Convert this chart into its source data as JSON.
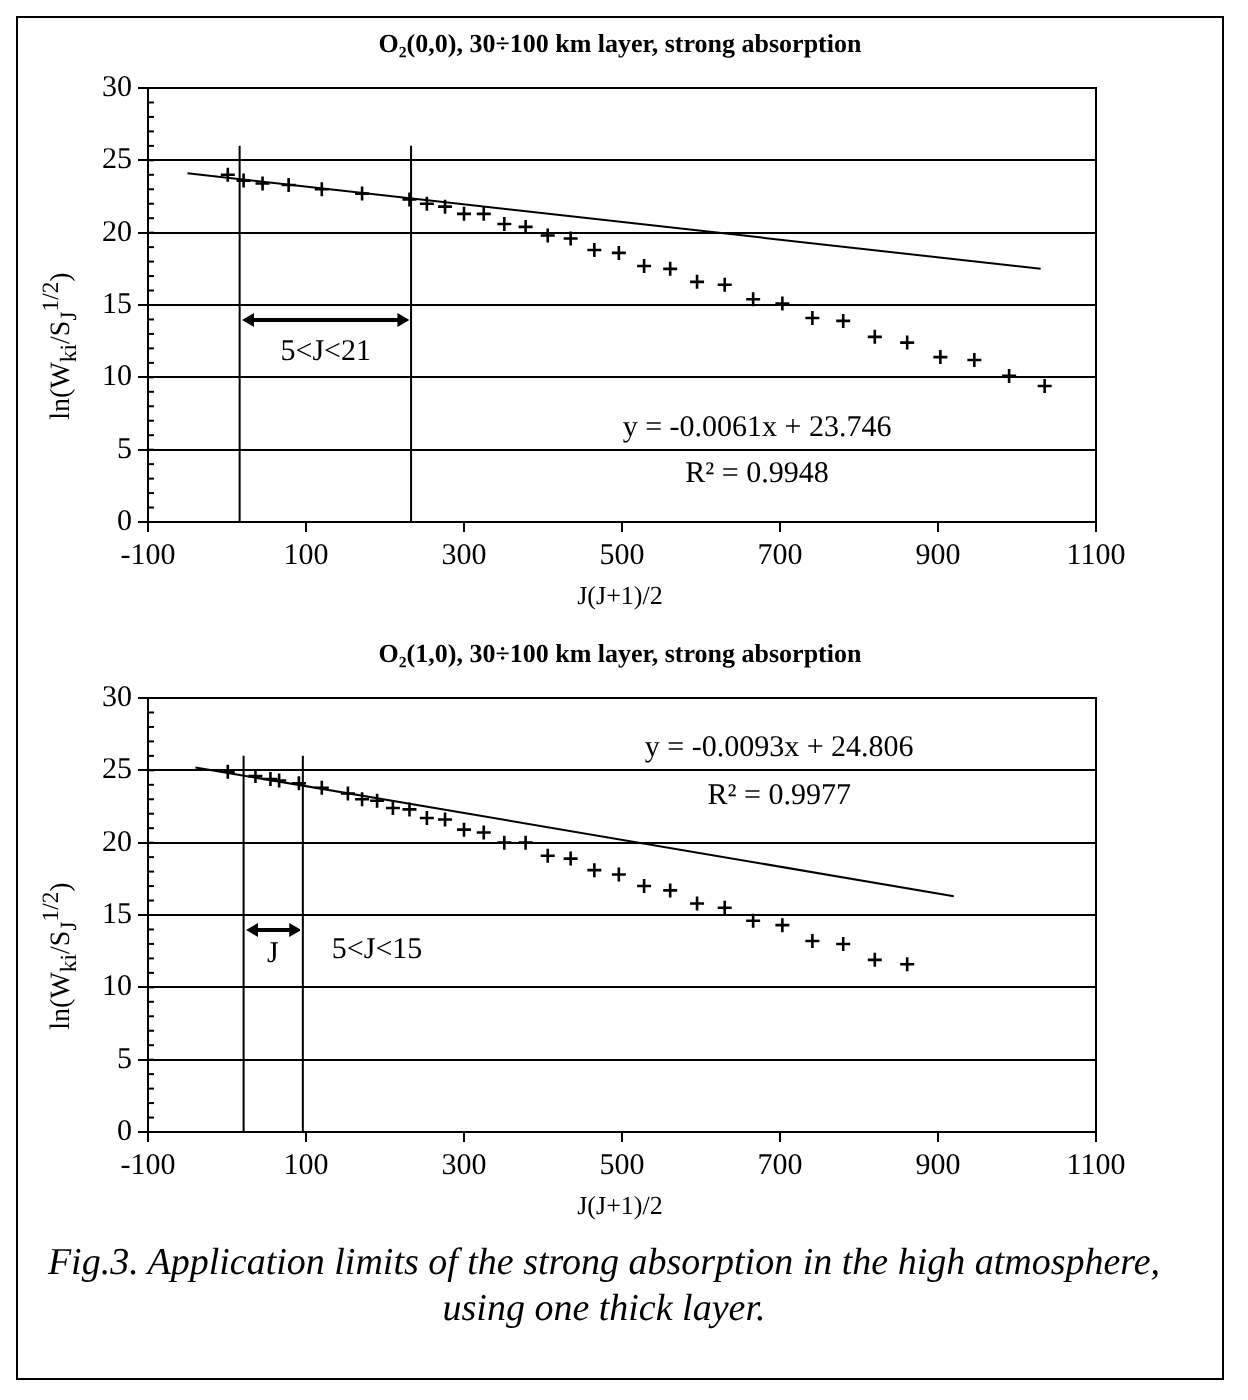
{
  "chart_data": [
    {
      "type": "scatter",
      "title": "O₂(0,0), 30÷100 km layer, strong absorption",
      "xlabel": "J(J+1)/2",
      "ylabel": "ln(W$_{ki}$/S$_{J}$$^{1/2}$)",
      "xlim": [
        -100,
        1100
      ],
      "xticks": [
        -100,
        100,
        300,
        500,
        700,
        900,
        1100
      ],
      "ylim": [
        0,
        30
      ],
      "yticks": [
        0,
        5,
        10,
        15,
        20,
        25,
        30
      ],
      "grid": "y",
      "series": [
        {
          "marker": "cross",
          "color": "#000000",
          "x": [
            1,
            21,
            45,
            78,
            120,
            171,
            231,
            253,
            276,
            300,
            325,
            351,
            378,
            406,
            435,
            465,
            496,
            528,
            561,
            595,
            630,
            666,
            703,
            741,
            780,
            820,
            861,
            903,
            946,
            990,
            1035
          ],
          "values": [
            24.0,
            23.6,
            23.4,
            23.3,
            23.0,
            22.7,
            22.3,
            22.0,
            21.8,
            21.3,
            21.3,
            20.6,
            20.4,
            19.8,
            19.6,
            18.8,
            18.6,
            17.7,
            17.5,
            16.6,
            16.4,
            15.4,
            15.1,
            14.1,
            13.9,
            12.8,
            12.4,
            11.4,
            11.2,
            10.1,
            9.4
          ]
        },
        {
          "type": "line",
          "marker": "none",
          "color": "#000000",
          "x": [
            -50,
            1030
          ],
          "values": [
            24.1,
            17.5
          ]
        }
      ],
      "ref_lines": [
        {
          "axis": "x",
          "value": 16
        },
        {
          "axis": "x",
          "value": 233
        }
      ],
      "annotations": [
        "5<J<21",
        "y = -0.0061x + 23.746",
        "R² = 0.9948"
      ]
    },
    {
      "type": "scatter",
      "title": "O₂(1,0), 30÷100 km layer, strong absorption",
      "xlabel": "J(J+1)/2",
      "ylabel": "ln(W$_{ki}$/S$_{J}$$^{1/2}$)",
      "xlim": [
        -100,
        1100
      ],
      "xticks": [
        -100,
        100,
        300,
        500,
        700,
        900,
        1100
      ],
      "ylim": [
        0,
        30
      ],
      "yticks": [
        0,
        5,
        10,
        15,
        20,
        25,
        30
      ],
      "grid": "y",
      "series": [
        {
          "marker": "cross",
          "color": "#000000",
          "x": [
            1,
            36,
            55,
            66,
            91,
            120,
            153,
            171,
            190,
            210,
            231,
            253,
            276,
            300,
            325,
            351,
            378,
            406,
            435,
            465,
            496,
            528,
            561,
            595,
            630,
            666,
            703,
            741,
            780,
            820,
            861
          ],
          "values": [
            24.9,
            24.6,
            24.4,
            24.3,
            24.1,
            23.8,
            23.4,
            23.0,
            22.9,
            22.4,
            22.3,
            21.7,
            21.6,
            20.9,
            20.7,
            20.0,
            20.0,
            19.1,
            18.9,
            18.1,
            17.8,
            17.0,
            16.7,
            15.8,
            15.5,
            14.6,
            14.3,
            13.2,
            13.0,
            11.9,
            11.6
          ]
        },
        {
          "type": "line",
          "marker": "none",
          "color": "#000000",
          "x": [
            -40,
            920
          ],
          "values": [
            25.2,
            16.3
          ]
        }
      ],
      "ref_lines": [
        {
          "axis": "x",
          "value": 21
        },
        {
          "axis": "x",
          "value": 96
        }
      ],
      "annotations": [
        "J",
        "5<J<15",
        "y = -0.0093x + 24.806",
        "R² = 0.9977",
        "Fig.3. Application limits of the strong absorption in the high atmosphere, using one thick layer."
      ]
    }
  ]
}
